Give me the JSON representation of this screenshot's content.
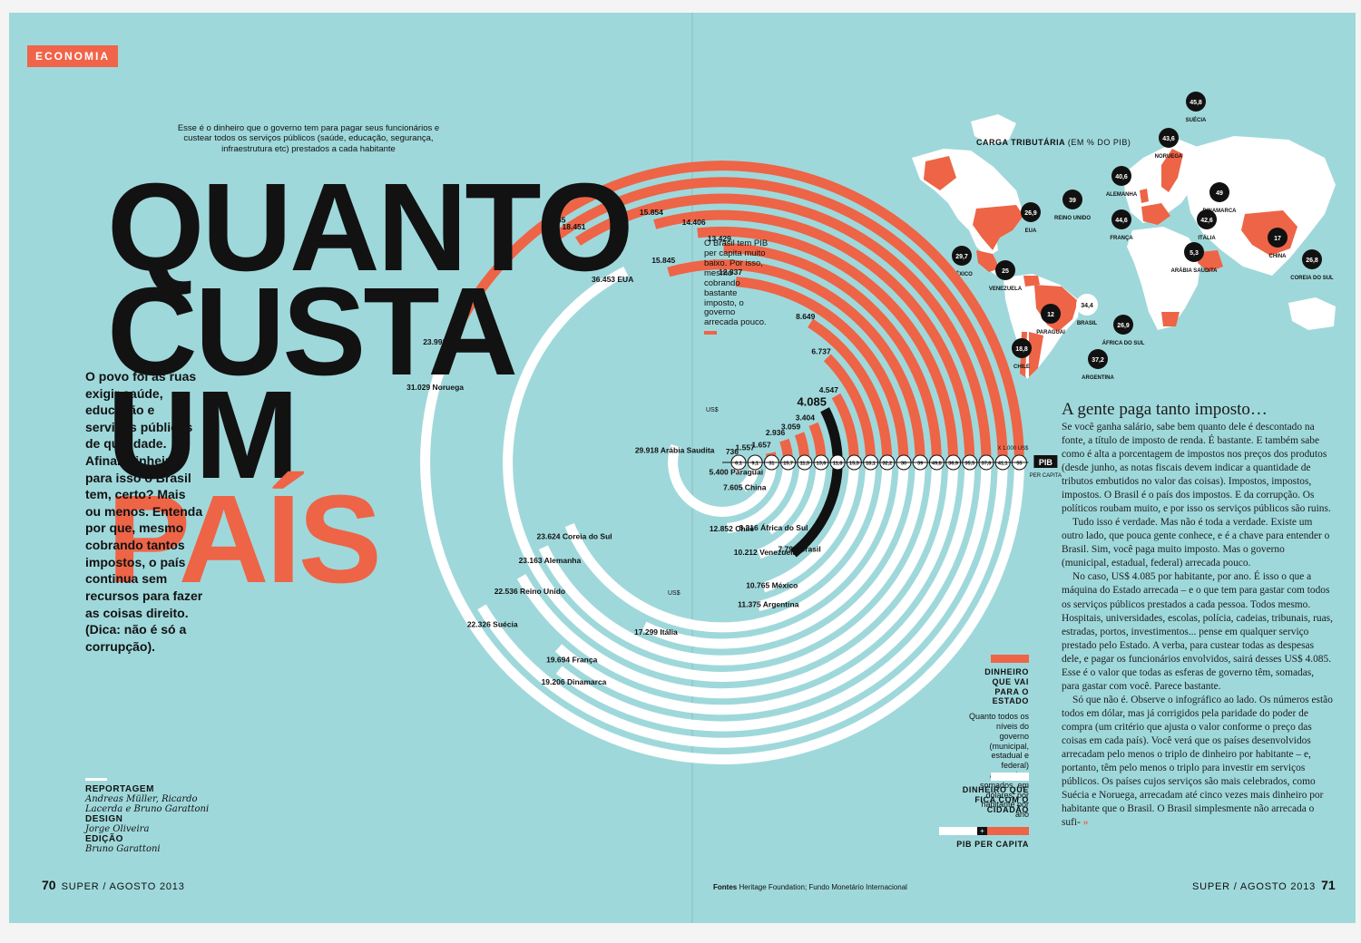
{
  "section": "ECONOMIA",
  "headline": [
    "QUANTO",
    "CUSTA",
    "UM",
    "PAÍS"
  ],
  "lede": "O povo foi às ruas exigir saúde, educação e serviços públicos de qualidade. Afinal, dinheiro para isso o Brasil tem, certo? Mais ou menos. Entenda por que, mesmo cobrando tantos impostos, o país continua sem recursos para fazer as coisas direito. (Dica: não é só a corrupção).",
  "credits": [
    {
      "label": "REPORTAGEM",
      "names": "Andreas Müller, Ricardo"
    },
    {
      "label": "",
      "names": "Lacerda e Bruno Garattoni"
    },
    {
      "label": "DESIGN",
      "names": "Jorge Oliveira"
    },
    {
      "label": "EDIÇÃO",
      "names": "Bruno Garattoni"
    }
  ],
  "chart_note": "Esse é o dinheiro que o governo tem para pagar seus funcionários e custear todos os serviços públicos (saúde, educação, segurança, infraestrutura etc) prestados a cada habitante",
  "brasil_note": "O Brasil tem PIB per capita muito baixo. Por isso, mesmo cobrando bastante imposto, o governo arrecada pouco.",
  "chart_data": {
    "type": "radial-bar",
    "currency_top": "US$",
    "currency_bottom": "US$",
    "pib_label": "PIB",
    "pib_sub": "PER CAPITA",
    "pib_unit": "X 1.000 US$",
    "rings": [
      {
        "country": "Paraguai",
        "pib": "6,1",
        "govt": "736",
        "citizen": "5.400"
      },
      {
        "country": "China",
        "pib": "9,1",
        "govt": "1.557",
        "citizen": "7.605"
      },
      {
        "country": "Arábia Saudita",
        "pib": "31",
        "govt": "1.657",
        "citizen": "29.918"
      },
      {
        "country": "Chile",
        "pib": "15,7",
        "govt": "2.936",
        "citizen": "12.852"
      },
      {
        "country": "África do Sul",
        "pib": "11,3",
        "govt": "3.059",
        "citizen": "8.316"
      },
      {
        "country": "Venezuela",
        "pib": "13,6",
        "govt": "3.404",
        "citizen": "10.212"
      },
      {
        "country": "Brasil",
        "pib": "11,8",
        "govt": "4.085",
        "citizen": "7.790"
      },
      {
        "country": "México",
        "pib": "15,3",
        "govt": "4.547",
        "citizen": "10.765"
      },
      {
        "country": "Argentina",
        "pib": "18,1",
        "govt": "6.737",
        "citizen": "11.375"
      },
      {
        "country": "Coreia do Sul",
        "pib": "32,2",
        "govt": "8.649",
        "citizen": "23.624"
      },
      {
        "country": "Itália",
        "pib": "30",
        "govt": "12.837",
        "citizen": "17.299"
      },
      {
        "country": "Alemanha",
        "pib": "39",
        "govt": "15.845",
        "citizen": "23.163"
      },
      {
        "country": "EUA",
        "pib": "49,8",
        "govt": "13.429",
        "citizen": "36.453"
      },
      {
        "country": "Reino Unido",
        "pib": "36,9",
        "govt": "14.406",
        "citizen": "22.536"
      },
      {
        "country": "França",
        "pib": "35,5",
        "govt": "15.854",
        "citizen": "19.694"
      },
      {
        "country": "Dinamarca",
        "pib": "37,6",
        "govt": "18.451",
        "citizen": "19.206"
      },
      {
        "country": "Suécia",
        "pib": "41,1",
        "govt": "18.865",
        "citizen": "22.326"
      },
      {
        "country": "Noruega",
        "pib": "55",
        "govt": "23.993",
        "citizen": "31.029"
      }
    ]
  },
  "legend": {
    "govt_title": "DINHEIRO QUE VAI PARA O ESTADO",
    "govt_desc": "Quanto todos os níveis do governo (municipal, estadual e federal) arrecadam somados, em dólares, por habitante por ano",
    "citizen_title": "DINHEIRO QUE FICA COM O CIDADÃO",
    "pib_title": "PIB PER CAPITA",
    "plus": "+"
  },
  "map": {
    "title": "CARGA TRIBUTÁRIA",
    "subtitle": "(EM % DO PIB)",
    "markers": [
      {
        "country": "SUÉCIA",
        "value": "45,8"
      },
      {
        "country": "NORUEGA",
        "value": "43,6"
      },
      {
        "country": "DINAMARCA",
        "value": "49"
      },
      {
        "country": "ALEMANHA",
        "value": "40,6"
      },
      {
        "country": "REINO UNIDO",
        "value": "39"
      },
      {
        "country": "FRANÇA",
        "value": "44,6"
      },
      {
        "country": "ITÁLIA",
        "value": "42,6"
      },
      {
        "country": "EUA",
        "value": "26,9"
      },
      {
        "country": "MÉXICO",
        "value": "29,7"
      },
      {
        "country": "VENEZUELA",
        "value": "25"
      },
      {
        "country": "CHINA",
        "value": "17"
      },
      {
        "country": "ARÁBIA SAUDITA",
        "value": "5,3"
      },
      {
        "country": "COREIA DO SUL",
        "value": "26,8"
      },
      {
        "country": "PARAGUAI",
        "value": "12"
      },
      {
        "country": "BRASIL",
        "value": "34,4"
      },
      {
        "country": "ÁFRICA DO SUL",
        "value": "26,9"
      },
      {
        "country": "CHILE",
        "value": "18,8"
      },
      {
        "country": "ARGENTINA",
        "value": "37,2"
      }
    ]
  },
  "article": {
    "heading": "A gente paga tanto imposto…",
    "paragraphs": [
      "Se você ganha salário, sabe bem quanto dele é descontado na fonte, a título de imposto de renda. É bastante. E também sabe como é alta a porcentagem de impostos nos preços dos produtos (desde junho, as notas fiscais devem indicar a quantidade de tributos embutidos no valor das coisas). Impostos, impostos, impostos. O Brasil é o país dos impostos. E da corrupção. Os políticos roubam muito, e por isso os serviços públicos são ruins.",
      "Tudo isso é verdade. Mas não é toda a verdade. Existe um outro lado, que pouca gente conhece, e é a chave para entender o Brasil. Sim, você paga muito imposto. Mas o governo (municipal, estadual, federal) arrecada pouco.",
      "No caso, US$ 4.085 por habitante, por ano. É isso o que a máquina do Estado arrecada – e o que tem para gastar com todos os serviços públicos prestados a cada pessoa. Todos mesmo. Hospitais, universidades, escolas, polícia, cadeias, tribunais, ruas, estradas, portos, investimentos... pense em qualquer serviço prestado pelo Estado. A verba, para custear todas as despesas dele, e pagar os funcionários envolvidos, sairá desses US$ 4.085. Esse é o valor que todas as esferas de governo têm, somadas, para gastar com você. Parece bastante.",
      "Só que não é. Observe o infográfico ao lado. Os números estão todos em dólar, mas já corrigidos pela paridade do poder de compra (um critério que ajusta o valor conforme o preço das coisas em cada país). Você verá que os países desenvolvidos arrecadam pelo menos o triplo de dinheiro por habitante – e, portanto, têm pelo menos o triplo para investir em serviços públicos. Os países cujos serviços são mais celebrados, como Suécia e Noruega, arrecadam até cinco vezes mais dinheiro por habitante que o Brasil. O Brasil simplesmente não arrecada o sufi-"
    ],
    "more": "»"
  },
  "footer": {
    "left_page": "70",
    "left_text": "SUPER / AGOSTO 2013",
    "right_text": "SUPER / AGOSTO 2013",
    "right_page": "71",
    "sources_label": "Fontes",
    "sources": "Heritage Foundation; Fundo Monetário Internacional"
  },
  "colors": {
    "background": "#9fd8db",
    "accent": "#ee6446",
    "ink": "#121212",
    "citizen": "#ffffff"
  }
}
